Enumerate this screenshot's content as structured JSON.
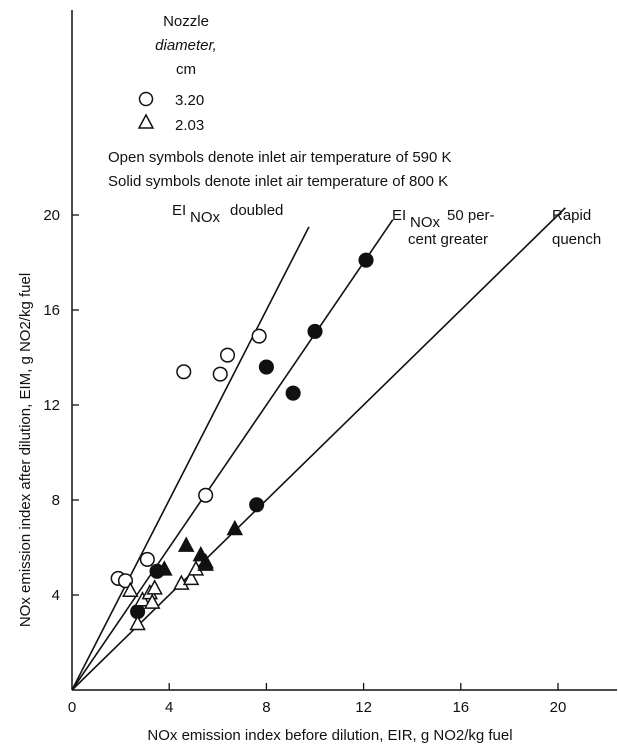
{
  "chart_data": {
    "type": "scatter",
    "xlabel": "NOx emission index before dilution, EIR, g NO2/kg fuel",
    "ylabel": "NOx emission index after dilution, EIM, g NO2/kg fuel",
    "xlim": [
      0,
      23
    ],
    "ylim": [
      0,
      20
    ],
    "x_ticks": [
      "0",
      "4",
      "8",
      "12",
      "16",
      "20"
    ],
    "y_ticks": [
      "4",
      "8",
      "12",
      "16",
      "20"
    ],
    "x_tick_values": [
      0,
      4,
      8,
      12,
      16,
      20
    ],
    "y_tick_values": [
      4,
      8,
      12,
      16,
      20
    ],
    "grid": false,
    "legend": {
      "title_line1": "Nozzle",
      "title_line2": "diameter,",
      "title_line3": "cm",
      "entries": [
        {
          "marker": "circle",
          "label": "3.20"
        },
        {
          "marker": "triangle",
          "label": "2.03"
        }
      ]
    },
    "notes": [
      "Open symbols denote inlet air temperature of 590 K",
      "Solid symbols denote inlet air temperature of 800 K"
    ],
    "lines": [
      {
        "label": "EINOx doubled",
        "slope": 2.0
      },
      {
        "label": "EINOx 50 per- cent greater",
        "slope": 1.5
      },
      {
        "label": "Rapid quench",
        "slope": 1.0
      }
    ],
    "line_labels": {
      "doubled_main": "EI",
      "doubled_sub": "NOx",
      "doubled_rest": "doubled",
      "fifty_main": "EI",
      "fifty_sub": "NOx",
      "fifty_rest": "50 per-",
      "fifty_line2": "cent greater",
      "rapid_line1": "Rapid",
      "rapid_line2": "quench"
    },
    "series": [
      {
        "marker": "circle",
        "fill": "open",
        "points": [
          [
            1.9,
            4.7
          ],
          [
            2.2,
            4.6
          ],
          [
            3.1,
            5.5
          ],
          [
            4.6,
            13.4
          ],
          [
            6.1,
            13.3
          ],
          [
            6.4,
            14.1
          ],
          [
            7.7,
            14.9
          ],
          [
            5.5,
            8.2
          ]
        ]
      },
      {
        "marker": "circle",
        "fill": "solid",
        "points": [
          [
            12.1,
            18.1
          ],
          [
            10.0,
            15.1
          ],
          [
            8.0,
            13.6
          ],
          [
            9.1,
            12.5
          ],
          [
            7.6,
            7.8
          ],
          [
            3.5,
            5.0
          ],
          [
            2.7,
            3.3
          ]
        ]
      },
      {
        "marker": "triangle",
        "fill": "open",
        "points": [
          [
            2.7,
            2.8
          ],
          [
            2.9,
            3.8
          ],
          [
            3.2,
            4.1
          ],
          [
            3.4,
            4.3
          ],
          [
            3.3,
            3.7
          ],
          [
            4.5,
            4.5
          ],
          [
            4.9,
            4.7
          ],
          [
            5.1,
            5.1
          ],
          [
            5.5,
            5.4
          ],
          [
            2.4,
            4.2
          ]
        ]
      },
      {
        "marker": "triangle",
        "fill": "solid",
        "points": [
          [
            3.8,
            5.1
          ],
          [
            4.7,
            6.1
          ],
          [
            5.3,
            5.7
          ],
          [
            5.5,
            5.3
          ],
          [
            6.7,
            6.8
          ]
        ]
      }
    ]
  }
}
